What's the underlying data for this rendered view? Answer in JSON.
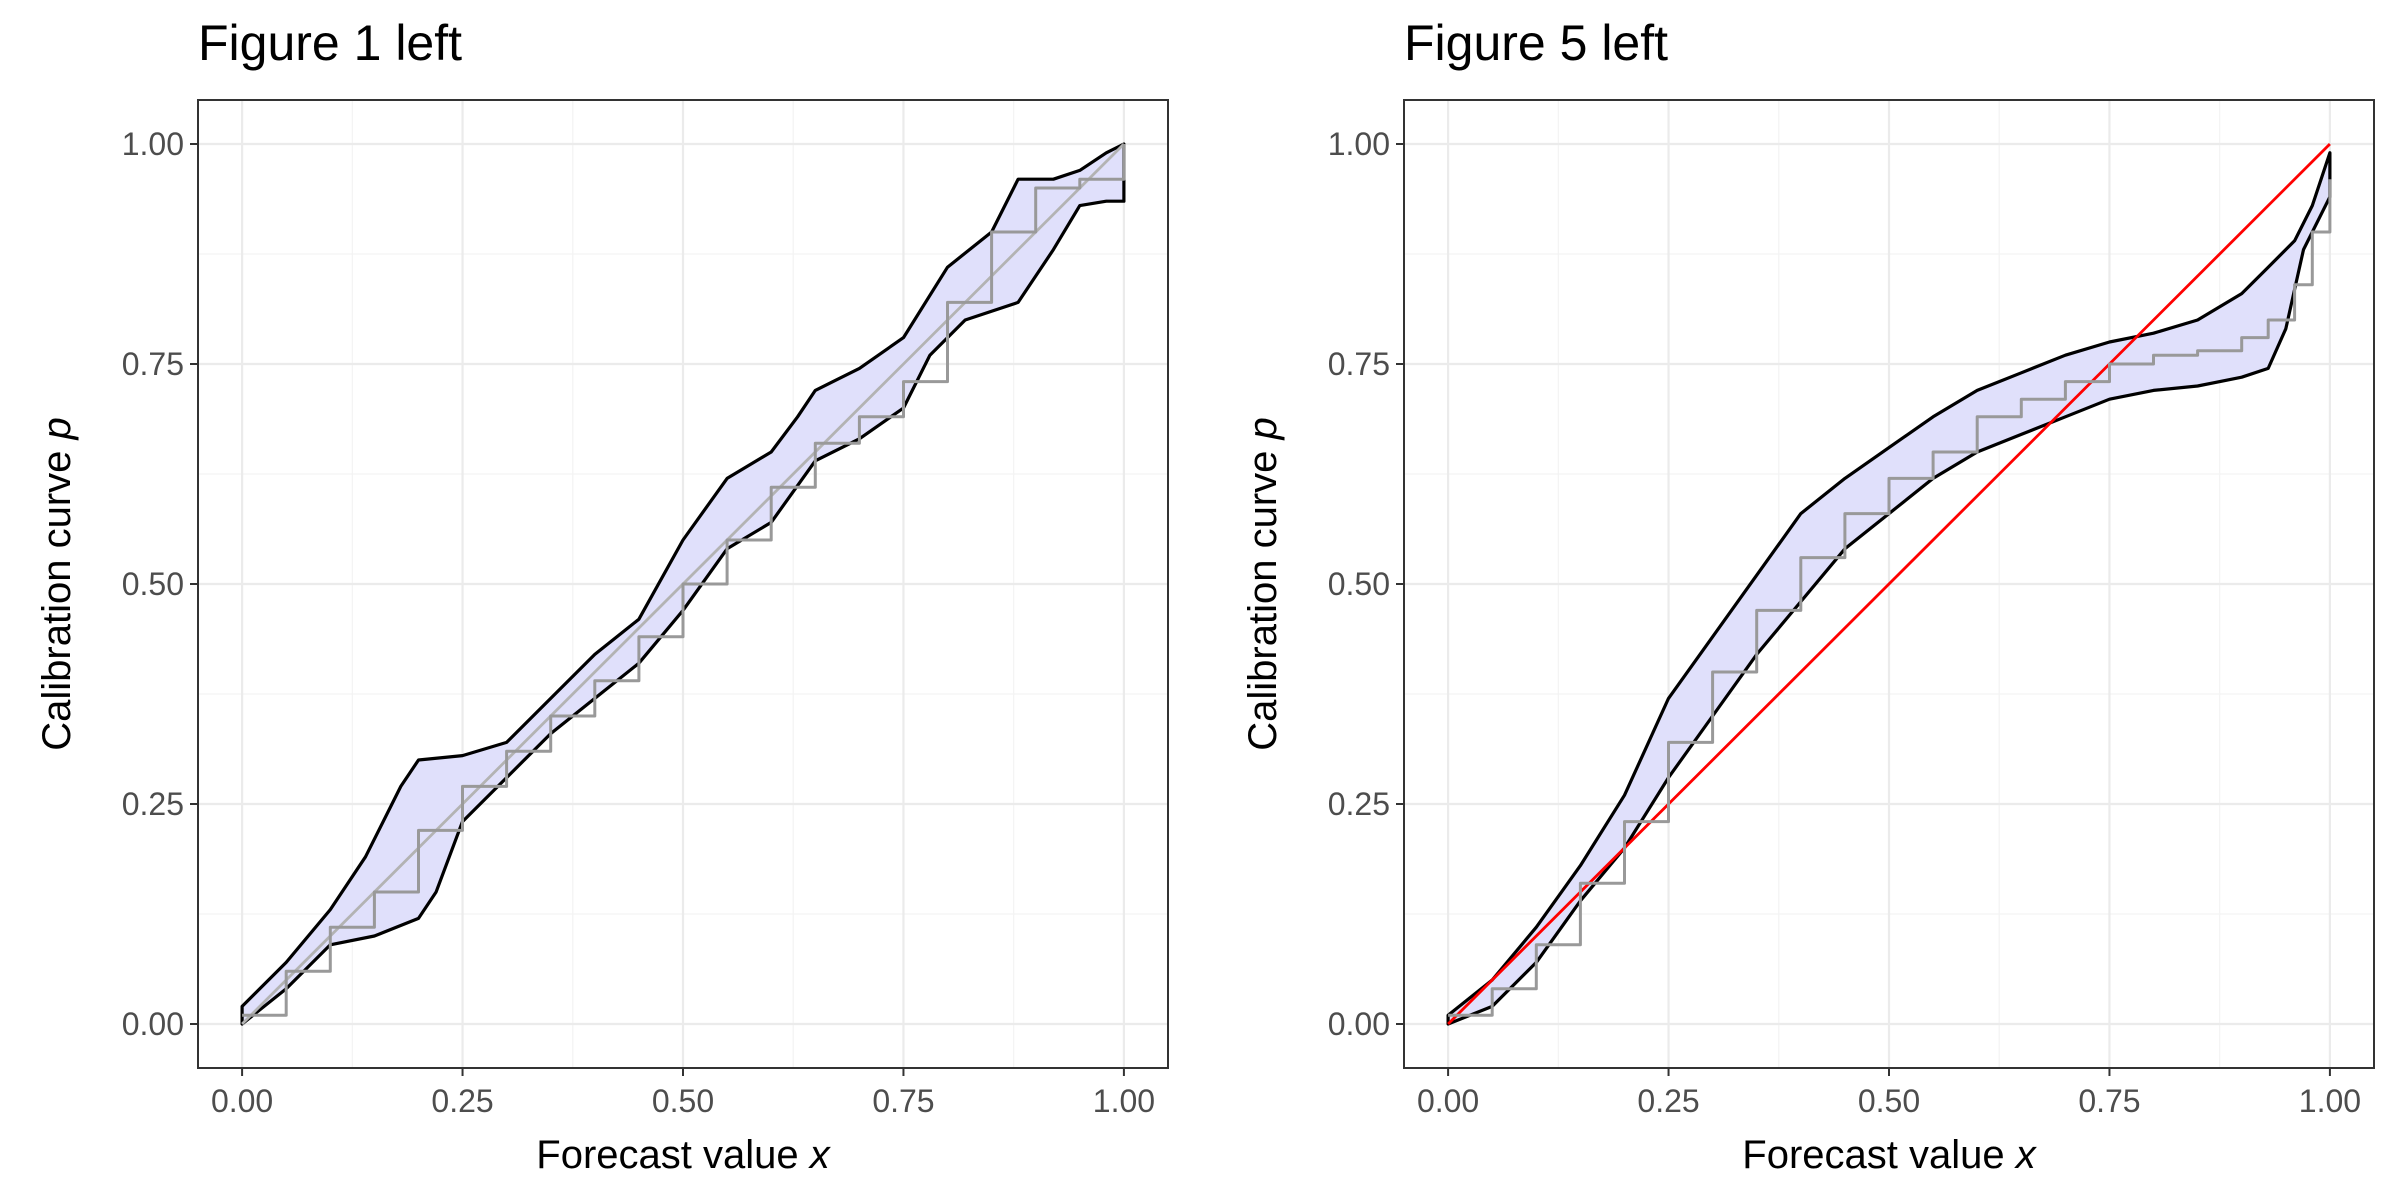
{
  "colors": {
    "band_fill": "#e0e0fb",
    "band_outline": "#000000",
    "curve": "#999999",
    "grid": "#ebebeb",
    "border": "#333333",
    "diag_left": "#b3b3b3",
    "diag_right": "#ff0000"
  },
  "chart_data": [
    {
      "type": "line",
      "title": "Figure 1 left",
      "xlabel_text": "Forecast value ",
      "xlabel_var": "x",
      "ylabel_text": "Calibration curve ",
      "ylabel_var": "p",
      "xlim": [
        -0.05,
        1.05
      ],
      "ylim": [
        -0.05,
        1.05
      ],
      "x_ticks": [
        0,
        0.25,
        0.5,
        0.75,
        1
      ],
      "x_tick_labels": [
        "0.00",
        "0.25",
        "0.50",
        "0.75",
        "1.00"
      ],
      "y_ticks": [
        0,
        0.25,
        0.5,
        0.75,
        1
      ],
      "y_tick_labels": [
        "0.00",
        "0.25",
        "0.50",
        "0.75",
        "1.00"
      ],
      "grid": true,
      "diagonal": {
        "x": [
          0,
          1
        ],
        "y": [
          0,
          1
        ],
        "color": "#b3b3b3"
      },
      "band_upper": {
        "x": [
          0,
          0.05,
          0.1,
          0.14,
          0.18,
          0.2,
          0.25,
          0.3,
          0.35,
          0.4,
          0.45,
          0.5,
          0.55,
          0.6,
          0.63,
          0.65,
          0.7,
          0.75,
          0.8,
          0.85,
          0.88,
          0.92,
          0.95,
          0.98,
          1.0
        ],
        "y": [
          0.02,
          0.07,
          0.13,
          0.19,
          0.27,
          0.3,
          0.305,
          0.32,
          0.37,
          0.42,
          0.46,
          0.55,
          0.62,
          0.65,
          0.69,
          0.72,
          0.745,
          0.78,
          0.86,
          0.9,
          0.96,
          0.96,
          0.97,
          0.99,
          1.0
        ]
      },
      "band_lower": {
        "x": [
          0,
          0.05,
          0.1,
          0.15,
          0.2,
          0.22,
          0.25,
          0.3,
          0.35,
          0.4,
          0.45,
          0.5,
          0.55,
          0.6,
          0.65,
          0.7,
          0.75,
          0.78,
          0.82,
          0.88,
          0.92,
          0.95,
          0.98,
          1.0
        ],
        "y": [
          0.0,
          0.04,
          0.09,
          0.1,
          0.12,
          0.15,
          0.23,
          0.28,
          0.33,
          0.37,
          0.41,
          0.47,
          0.54,
          0.57,
          0.64,
          0.665,
          0.7,
          0.76,
          0.8,
          0.82,
          0.88,
          0.93,
          0.935,
          0.935
        ]
      },
      "curve": {
        "x": [
          0,
          0.05,
          0.1,
          0.15,
          0.2,
          0.25,
          0.3,
          0.35,
          0.4,
          0.45,
          0.5,
          0.55,
          0.6,
          0.65,
          0.7,
          0.75,
          0.8,
          0.85,
          0.9,
          0.95,
          1.0
        ],
        "y": [
          0.01,
          0.06,
          0.11,
          0.15,
          0.22,
          0.27,
          0.31,
          0.35,
          0.39,
          0.44,
          0.5,
          0.55,
          0.61,
          0.66,
          0.69,
          0.73,
          0.82,
          0.9,
          0.95,
          0.96,
          1.0
        ]
      }
    },
    {
      "type": "line",
      "title": "Figure 5 left",
      "xlabel_text": "Forecast value ",
      "xlabel_var": "x",
      "ylabel_text": "Calibration curve ",
      "ylabel_var": "p",
      "xlim": [
        -0.05,
        1.05
      ],
      "ylim": [
        -0.05,
        1.05
      ],
      "x_ticks": [
        0,
        0.25,
        0.5,
        0.75,
        1
      ],
      "x_tick_labels": [
        "0.00",
        "0.25",
        "0.50",
        "0.75",
        "1.00"
      ],
      "y_ticks": [
        0,
        0.25,
        0.5,
        0.75,
        1
      ],
      "y_tick_labels": [
        "0.00",
        "0.25",
        "0.50",
        "0.75",
        "1.00"
      ],
      "grid": true,
      "diagonal": {
        "x": [
          0,
          1
        ],
        "y": [
          0,
          1
        ],
        "color": "#ff0000"
      },
      "band_upper": {
        "x": [
          0,
          0.05,
          0.1,
          0.15,
          0.2,
          0.25,
          0.3,
          0.35,
          0.4,
          0.45,
          0.5,
          0.55,
          0.6,
          0.65,
          0.7,
          0.75,
          0.8,
          0.85,
          0.9,
          0.93,
          0.96,
          0.98,
          1.0
        ],
        "y": [
          0.01,
          0.05,
          0.11,
          0.18,
          0.26,
          0.37,
          0.44,
          0.51,
          0.58,
          0.62,
          0.655,
          0.69,
          0.72,
          0.74,
          0.76,
          0.775,
          0.785,
          0.8,
          0.83,
          0.86,
          0.89,
          0.93,
          0.99
        ]
      },
      "band_lower": {
        "x": [
          0,
          0.05,
          0.1,
          0.15,
          0.2,
          0.25,
          0.3,
          0.35,
          0.4,
          0.45,
          0.5,
          0.55,
          0.6,
          0.65,
          0.7,
          0.75,
          0.8,
          0.85,
          0.9,
          0.93,
          0.95,
          0.97,
          1.0
        ],
        "y": [
          0.0,
          0.02,
          0.07,
          0.14,
          0.2,
          0.28,
          0.35,
          0.42,
          0.48,
          0.54,
          0.58,
          0.62,
          0.65,
          0.67,
          0.69,
          0.71,
          0.72,
          0.725,
          0.735,
          0.745,
          0.79,
          0.88,
          0.94
        ]
      },
      "curve": {
        "x": [
          0,
          0.05,
          0.1,
          0.15,
          0.2,
          0.25,
          0.3,
          0.35,
          0.4,
          0.45,
          0.5,
          0.55,
          0.6,
          0.65,
          0.7,
          0.75,
          0.8,
          0.85,
          0.9,
          0.93,
          0.96,
          0.98,
          1.0
        ],
        "y": [
          0.01,
          0.04,
          0.09,
          0.16,
          0.23,
          0.32,
          0.4,
          0.47,
          0.53,
          0.58,
          0.62,
          0.65,
          0.69,
          0.71,
          0.73,
          0.75,
          0.76,
          0.765,
          0.78,
          0.8,
          0.84,
          0.9,
          0.96
        ]
      }
    }
  ]
}
